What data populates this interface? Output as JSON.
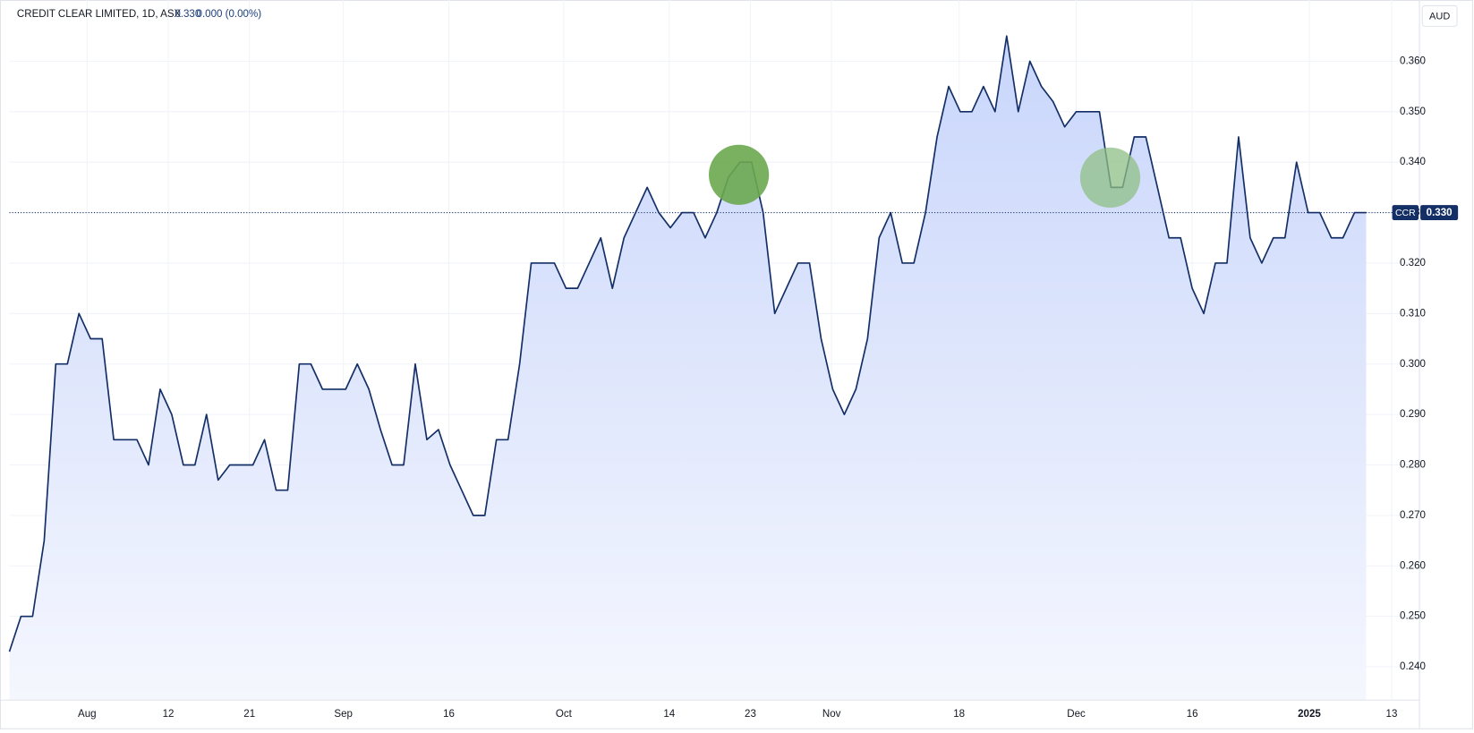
{
  "chart_data": {
    "type": "area",
    "header": {
      "symbol_line": "CREDIT CLEAR LIMITED, 1D, ASX",
      "last": "0.330",
      "change": "0.000 (0.00%)"
    },
    "currency": "AUD",
    "ticker": "CCR",
    "last_price": {
      "value": 0.33,
      "label": "0.330"
    },
    "series": [
      {
        "name": "CCR",
        "color": "#132f66",
        "fill_top": "#c9d6fb",
        "fill_bottom": "#f5f7fe",
        "values": [
          0.243,
          0.25,
          0.25,
          0.265,
          0.3,
          0.3,
          0.31,
          0.305,
          0.305,
          0.285,
          0.285,
          0.285,
          0.28,
          0.295,
          0.29,
          0.28,
          0.28,
          0.29,
          0.277,
          0.28,
          0.28,
          0.28,
          0.285,
          0.275,
          0.275,
          0.3,
          0.3,
          0.295,
          0.295,
          0.295,
          0.3,
          0.295,
          0.287,
          0.28,
          0.28,
          0.3,
          0.285,
          0.287,
          0.28,
          0.275,
          0.27,
          0.27,
          0.285,
          0.285,
          0.3,
          0.32,
          0.32,
          0.32,
          0.315,
          0.315,
          0.32,
          0.325,
          0.315,
          0.325,
          0.33,
          0.335,
          0.33,
          0.327,
          0.33,
          0.33,
          0.325,
          0.33,
          0.337,
          0.34,
          0.34,
          0.33,
          0.31,
          0.315,
          0.32,
          0.32,
          0.305,
          0.295,
          0.29,
          0.295,
          0.305,
          0.325,
          0.33,
          0.32,
          0.32,
          0.33,
          0.345,
          0.355,
          0.35,
          0.35,
          0.355,
          0.35,
          0.365,
          0.35,
          0.36,
          0.355,
          0.352,
          0.347,
          0.35,
          0.35,
          0.35,
          0.335,
          0.335,
          0.345,
          0.345,
          0.335,
          0.325,
          0.325,
          0.315,
          0.31,
          0.32,
          0.32,
          0.345,
          0.325,
          0.32,
          0.325,
          0.325,
          0.34,
          0.33,
          0.33,
          0.325,
          0.325,
          0.33,
          0.33
        ]
      }
    ],
    "xlim": [
      0,
      121.6
    ],
    "xticks": [
      {
        "value": 6.7,
        "label": "Aug"
      },
      {
        "value": 13.7,
        "label": "12"
      },
      {
        "value": 20.7,
        "label": "21"
      },
      {
        "value": 28.8,
        "label": "Sep"
      },
      {
        "value": 37.9,
        "label": "16"
      },
      {
        "value": 47.8,
        "label": "Oct"
      },
      {
        "value": 56.9,
        "label": "14"
      },
      {
        "value": 63.9,
        "label": "23"
      },
      {
        "value": 70.9,
        "label": "Nov"
      },
      {
        "value": 81.9,
        "label": "18"
      },
      {
        "value": 92,
        "label": "Dec"
      },
      {
        "value": 102,
        "label": "16"
      },
      {
        "value": 112.1,
        "label": "2025"
      },
      {
        "value": 119.2,
        "label": "13"
      }
    ],
    "ylim": [
      0.2334,
      0.3712
    ],
    "yticks": [
      {
        "value": 0.24,
        "label": "0.240"
      },
      {
        "value": 0.25,
        "label": "0.250"
      },
      {
        "value": 0.26,
        "label": "0.260"
      },
      {
        "value": 0.27,
        "label": "0.270"
      },
      {
        "value": 0.28,
        "label": "0.280"
      },
      {
        "value": 0.29,
        "label": "0.290"
      },
      {
        "value": 0.3,
        "label": "0.300"
      },
      {
        "value": 0.31,
        "label": "0.310"
      },
      {
        "value": 0.32,
        "label": "0.320"
      },
      {
        "value": 0.33,
        "label": "0.330"
      },
      {
        "value": 0.34,
        "label": "0.340"
      },
      {
        "value": 0.35,
        "label": "0.350"
      },
      {
        "value": 0.36,
        "label": "0.360"
      }
    ],
    "grid": true
  }
}
